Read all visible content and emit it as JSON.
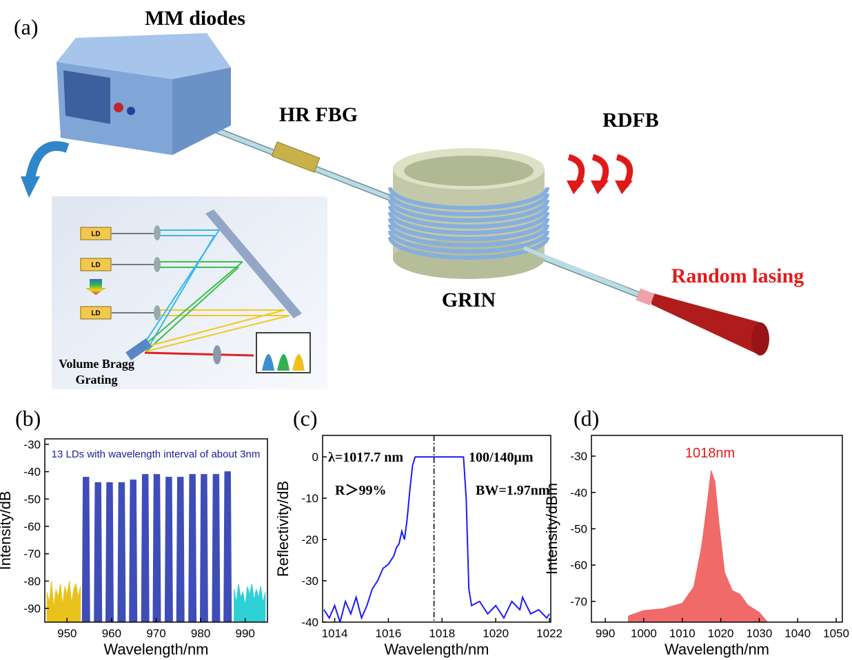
{
  "diagram": {
    "panel_label": "(a)",
    "labels": {
      "mm_diodes": "MM diodes",
      "hr_fbg": "HR FBG",
      "rdfb": "RDFB",
      "grin": "GRIN",
      "output": "Random lasing"
    },
    "inset": {
      "ld_labels": [
        "LD",
        "LD",
        "LD"
      ],
      "grating_label": [
        "Volume Bragg",
        "Grating"
      ]
    }
  },
  "chart_data": [
    {
      "type": "area",
      "panel_label": "(b)",
      "annotations": [
        "13 LDs with wavelength interval of about 3nm"
      ],
      "xlabel": "Wavelength/nm",
      "ylabel": "Intensity/dB",
      "xlim": [
        945,
        995
      ],
      "ylim": [
        -95,
        -28
      ],
      "xticks": [
        950,
        960,
        970,
        980,
        990
      ],
      "yticks": [
        -30,
        -40,
        -50,
        -60,
        -70,
        -80,
        -90
      ],
      "series": [
        {
          "color": "#e8c21a",
          "x": [
            945.5,
            946,
            946.5,
            947,
            947.5,
            948,
            948.5,
            949,
            949.5,
            950,
            950.5,
            951,
            951.5,
            952,
            952.5,
            953
          ],
          "values": [
            -84,
            -88,
            -80,
            -90,
            -83,
            -86,
            -81,
            -89,
            -82,
            -85,
            -80,
            -88,
            -83,
            -81,
            -86,
            -82
          ]
        },
        {
          "color": "#2fcfd6",
          "x": [
            987.5,
            988,
            988.5,
            989,
            989.5,
            990,
            990.5,
            991,
            991.5,
            992,
            992.5,
            993,
            993.5,
            994,
            994.5
          ],
          "values": [
            -83,
            -88,
            -81,
            -86,
            -84,
            -89,
            -82,
            -85,
            -81,
            -87,
            -83,
            -86,
            -82,
            -88,
            -84
          ]
        },
        {
          "color": "#3f4db8",
          "x": [
            953.4,
            953.6,
            954.9,
            955.1,
            956.1,
            956.3,
            957.6,
            957.8,
            958.7,
            958.9,
            960.2,
            960.4,
            961.4,
            961.6,
            962.9,
            963.1,
            964.0,
            964.2,
            965.5,
            965.7,
            966.7,
            966.9,
            968.2,
            968.4,
            969.3,
            969.5,
            970.8,
            971.0,
            972.0,
            972.2,
            973.5,
            973.7,
            974.6,
            974.8,
            976.1,
            976.3,
            977.3,
            977.5,
            978.8,
            979.0,
            979.9,
            980.1,
            981.4,
            981.6,
            982.6,
            982.8,
            984.1,
            984.3,
            985.2,
            985.4,
            986.7,
            986.9
          ],
          "values": [
            -95,
            -42,
            -42,
            -95,
            -95,
            -44,
            -44,
            -95,
            -95,
            -44,
            -44,
            -95,
            -95,
            -44,
            -44,
            -95,
            -95,
            -43,
            -43,
            -95,
            -95,
            -41,
            -41,
            -95,
            -95,
            -41,
            -41,
            -95,
            -95,
            -42,
            -42,
            -95,
            -95,
            -42,
            -42,
            -95,
            -95,
            -41,
            -41,
            -95,
            -95,
            -41,
            -41,
            -95,
            -95,
            -41,
            -41,
            -95,
            -95,
            -40,
            -40,
            -95
          ]
        }
      ]
    },
    {
      "type": "line",
      "panel_label": "(c)",
      "annotations": [
        "λ=1017.7 nm",
        "100/140μm",
        "R＞99%",
        "BW=1.97nm"
      ],
      "xlabel": "Wavelength/nm",
      "ylabel": "Reflectivity/dB",
      "xlim": [
        1013.55,
        1022.05
      ],
      "ylim": [
        -40,
        5.2
      ],
      "xticks": [
        1014,
        1016,
        1018,
        1020,
        1022
      ],
      "yticks": [
        0,
        -10,
        -20,
        -30,
        -40
      ],
      "reference_x": 1017.7,
      "color": "#1a1aff",
      "x": [
        1013.6,
        1013.8,
        1014.0,
        1014.2,
        1014.4,
        1014.6,
        1014.8,
        1015.0,
        1015.2,
        1015.4,
        1015.6,
        1015.8,
        1016.0,
        1016.2,
        1016.3,
        1016.4,
        1016.5,
        1016.6,
        1016.7,
        1016.8,
        1016.9,
        1017.0,
        1017.5,
        1018.0,
        1018.5,
        1018.8,
        1018.9,
        1019.0,
        1019.1,
        1019.4,
        1019.7,
        1020.0,
        1020.3,
        1020.6,
        1020.9,
        1021.0,
        1021.3,
        1021.6,
        1021.9,
        1022.0
      ],
      "values": [
        -37,
        -39,
        -36,
        -40,
        -35,
        -38,
        -34,
        -39,
        -36,
        -32,
        -30,
        -27,
        -26,
        -24,
        -22,
        -21,
        -18,
        -20,
        -15,
        -8,
        -2,
        0,
        0,
        0,
        0,
        0,
        -10,
        -32,
        -36,
        -35,
        -38,
        -36,
        -39,
        -35,
        -37,
        -34,
        -38,
        -37,
        -39,
        -38
      ]
    },
    {
      "type": "area",
      "panel_label": "(d)",
      "annotations": [
        "1018nm"
      ],
      "xlabel": "Wavelength/nm",
      "ylabel": "Intensity/dBm",
      "xlim": [
        986.4,
        1051.6
      ],
      "ylim": [
        -75.7,
        -24.3
      ],
      "xticks": [
        990,
        1000,
        1010,
        1020,
        1030,
        1040,
        1050
      ],
      "yticks": [
        -30,
        -40,
        -50,
        -60,
        -70
      ],
      "color": "#f06a6a",
      "x": [
        996,
        1000,
        1005,
        1010,
        1013,
        1015,
        1016.5,
        1017.5,
        1018.5,
        1019.5,
        1021,
        1023,
        1025,
        1027,
        1030,
        1032
      ],
      "values": [
        -74,
        -72.5,
        -72,
        -70.5,
        -66,
        -55,
        -43,
        -34,
        -37,
        -48,
        -62,
        -67,
        -68,
        -71,
        -73,
        -75.5
      ]
    }
  ]
}
